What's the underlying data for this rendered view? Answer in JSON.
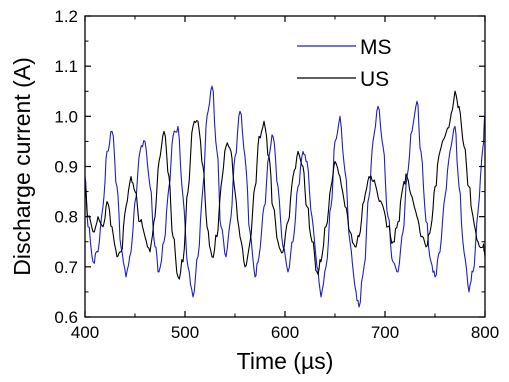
{
  "chart_data": {
    "type": "line",
    "title": "",
    "xlabel": "Time (µs)",
    "ylabel": "Discharge current (A)",
    "xlim": [
      400,
      800
    ],
    "ylim": [
      0.6,
      1.2
    ],
    "x_ticks": [
      400,
      500,
      600,
      700,
      800
    ],
    "x_tick_labels": [
      "400",
      "500",
      "600",
      "700",
      "800"
    ],
    "y_ticks": [
      0.6,
      0.7,
      0.8,
      0.9,
      1.0,
      1.1,
      1.2
    ],
    "y_tick_labels": [
      "0.6",
      "0.7",
      "0.8",
      "0.9",
      "1.0",
      "1.1",
      "1.2"
    ],
    "grid": false,
    "legend_position": "top-right",
    "series": [
      {
        "name": "MS",
        "color": "#1f1fbf",
        "x": [
          400,
          403,
          408,
          413,
          418,
          422,
          427,
          432,
          436,
          441,
          446,
          450,
          455,
          460,
          465,
          470,
          474,
          479,
          484,
          488,
          493,
          498,
          503,
          508,
          513,
          518,
          522,
          527,
          532,
          536,
          541,
          546,
          550,
          555,
          560,
          565,
          570,
          574,
          579,
          584,
          588,
          593,
          598,
          603,
          608,
          613,
          618,
          622,
          627,
          632,
          636,
          641,
          646,
          650,
          655,
          660,
          665,
          670,
          674,
          679,
          684,
          688,
          693,
          698,
          703,
          708,
          713,
          718,
          722,
          727,
          732,
          736,
          741,
          746,
          750,
          755,
          760,
          765,
          770,
          774,
          779,
          784,
          788,
          793,
          798,
          800
        ],
        "y": [
          0.88,
          0.78,
          0.71,
          0.73,
          0.82,
          0.93,
          0.97,
          0.86,
          0.74,
          0.68,
          0.73,
          0.83,
          0.93,
          0.95,
          0.86,
          0.74,
          0.69,
          0.75,
          0.86,
          0.96,
          0.98,
          0.84,
          0.7,
          0.64,
          0.72,
          0.86,
          1.0,
          1.06,
          0.93,
          0.78,
          0.72,
          0.8,
          0.92,
          1.01,
          0.92,
          0.77,
          0.68,
          0.72,
          0.82,
          0.92,
          0.96,
          0.86,
          0.74,
          0.69,
          0.75,
          0.86,
          0.93,
          0.91,
          0.8,
          0.7,
          0.64,
          0.7,
          0.82,
          0.95,
          1.0,
          0.89,
          0.75,
          0.66,
          0.62,
          0.7,
          0.84,
          0.95,
          1.02,
          0.94,
          0.8,
          0.71,
          0.69,
          0.77,
          0.88,
          0.97,
          1.03,
          0.93,
          0.79,
          0.71,
          0.68,
          0.73,
          0.84,
          0.93,
          0.98,
          0.86,
          0.73,
          0.65,
          0.69,
          0.81,
          0.94,
          1.0
        ]
      },
      {
        "name": "US",
        "color": "#000000",
        "x": [
          400,
          403,
          408,
          413,
          418,
          422,
          427,
          432,
          436,
          441,
          446,
          450,
          455,
          460,
          465,
          470,
          474,
          479,
          484,
          488,
          493,
          498,
          503,
          508,
          513,
          518,
          522,
          527,
          532,
          536,
          541,
          546,
          550,
          555,
          560,
          565,
          570,
          574,
          579,
          584,
          588,
          593,
          598,
          603,
          608,
          613,
          618,
          622,
          627,
          632,
          636,
          641,
          646,
          650,
          655,
          660,
          665,
          670,
          674,
          679,
          684,
          688,
          693,
          698,
          703,
          708,
          713,
          718,
          722,
          727,
          732,
          736,
          741,
          746,
          750,
          755,
          760,
          765,
          770,
          774,
          779,
          784,
          788,
          793,
          798,
          800
        ],
        "y": [
          0.86,
          0.8,
          0.77,
          0.8,
          0.78,
          0.83,
          0.78,
          0.72,
          0.73,
          0.82,
          0.88,
          0.85,
          0.79,
          0.76,
          0.73,
          0.8,
          0.91,
          0.97,
          0.88,
          0.76,
          0.68,
          0.71,
          0.85,
          0.98,
          0.99,
          0.9,
          0.78,
          0.72,
          0.76,
          0.86,
          0.94,
          0.93,
          0.85,
          0.76,
          0.7,
          0.75,
          0.86,
          0.96,
          0.99,
          0.92,
          0.82,
          0.75,
          0.73,
          0.79,
          0.88,
          0.93,
          0.9,
          0.82,
          0.75,
          0.69,
          0.71,
          0.78,
          0.86,
          0.91,
          0.88,
          0.82,
          0.77,
          0.74,
          0.76,
          0.83,
          0.88,
          0.87,
          0.84,
          0.82,
          0.78,
          0.75,
          0.79,
          0.86,
          0.88,
          0.84,
          0.8,
          0.76,
          0.74,
          0.78,
          0.86,
          0.93,
          0.96,
          0.99,
          1.05,
          1.02,
          0.94,
          0.86,
          0.8,
          0.75,
          0.74,
          0.72
        ]
      }
    ]
  }
}
